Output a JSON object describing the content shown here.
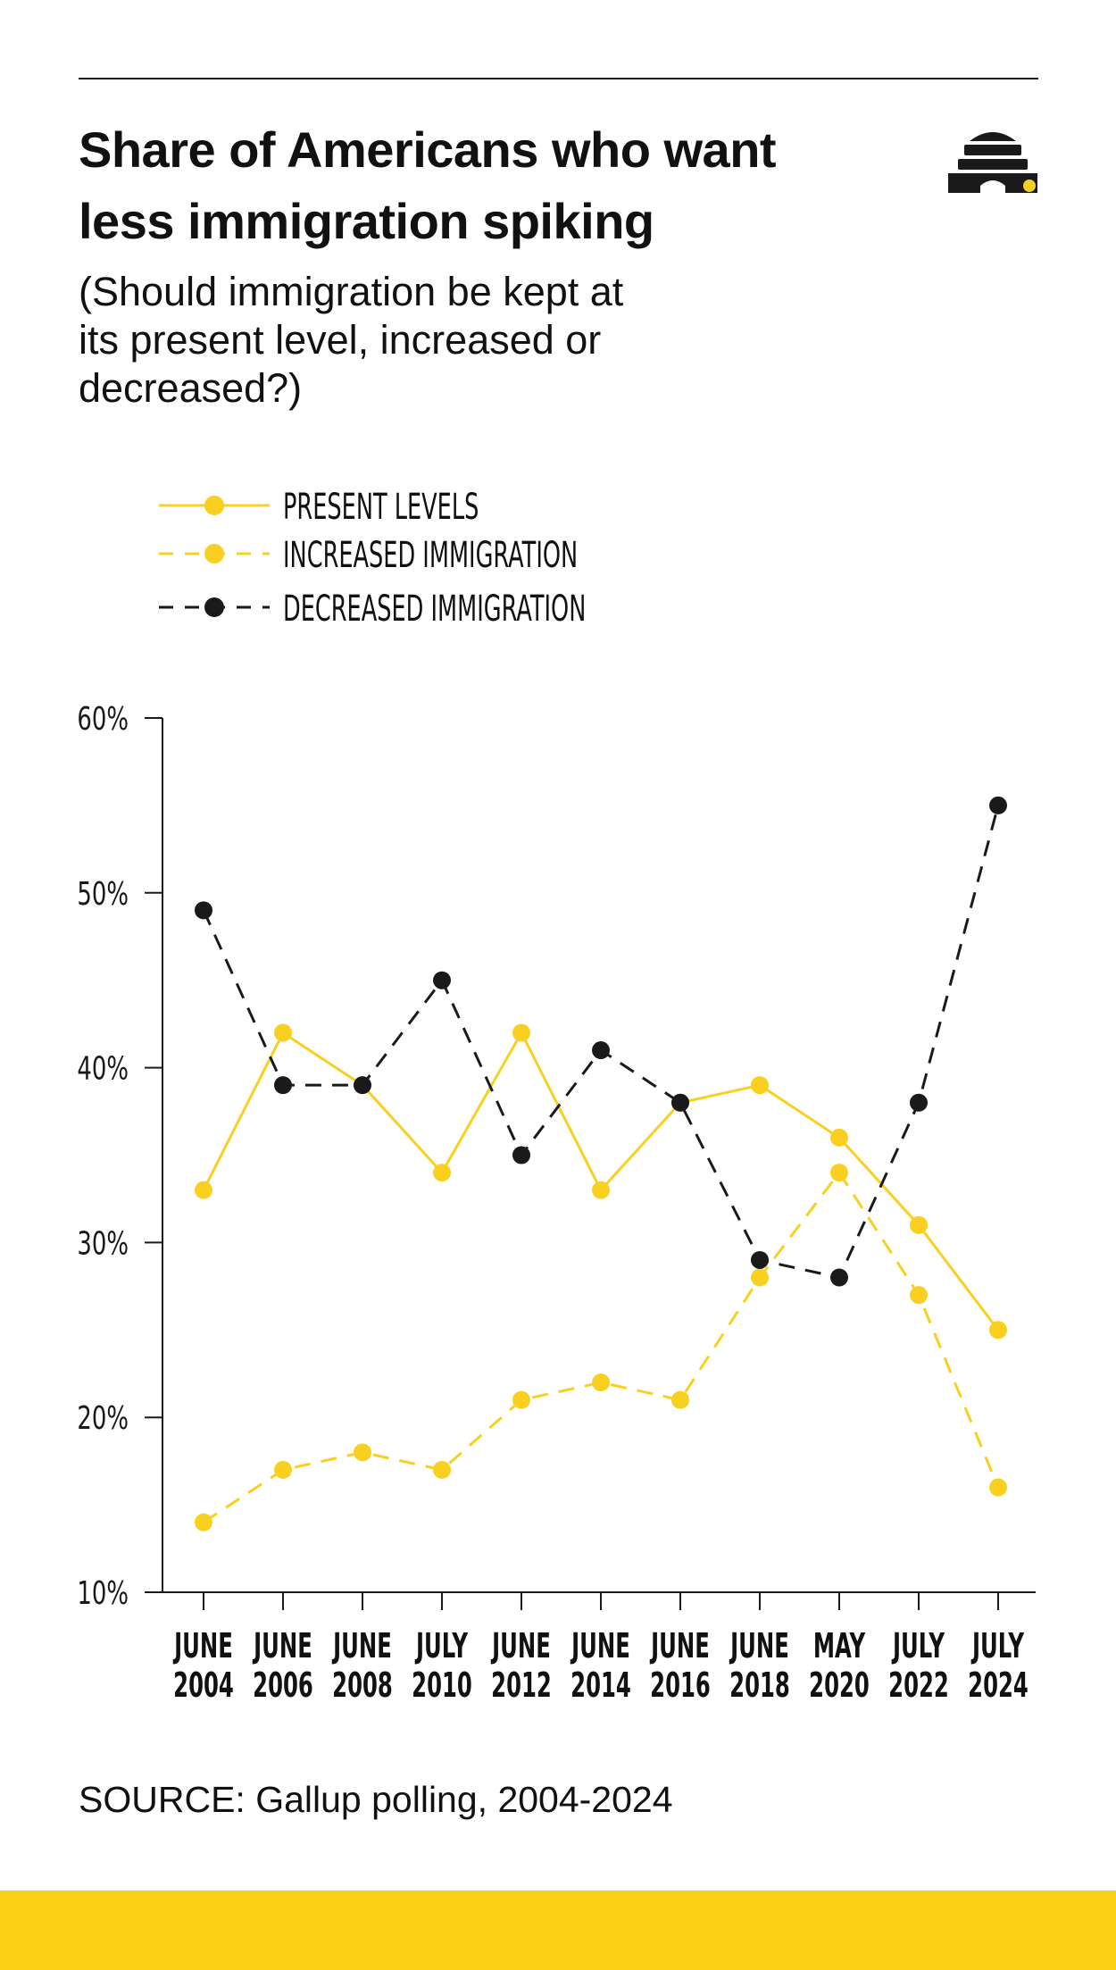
{
  "header": {
    "title_line1": "Share of Americans who want",
    "title_line2": "less immigration spiking",
    "subtitle_line1": "(Should immigration be kept at",
    "subtitle_line2": "its present level, increased or",
    "subtitle_line3": "decreased?)"
  },
  "logo": {
    "icon": "beehive-logo-icon"
  },
  "source": {
    "label": "SOURCE:",
    "text": "Gallup polling, 2004-2024"
  },
  "colors": {
    "yellow": "#f9d020",
    "black": "#1a1a1a",
    "band": "#fbd116",
    "axis": "#1a1a1a"
  },
  "chart_data": {
    "type": "line",
    "title": "Share of Americans who want less immigration spiking",
    "xlabel": "",
    "ylabel": "",
    "ylim": [
      10,
      60
    ],
    "yticks": [
      "10%",
      "20%",
      "30%",
      "40%",
      "50%",
      "60%"
    ],
    "ytick_values": [
      10,
      20,
      30,
      40,
      50,
      60
    ],
    "grid": false,
    "legend_position": "top-left",
    "categories": [
      [
        "JUNE",
        "2004"
      ],
      [
        "JUNE",
        "2006"
      ],
      [
        "JUNE",
        "2008"
      ],
      [
        "JULY",
        "2010"
      ],
      [
        "JUNE",
        "2012"
      ],
      [
        "JUNE",
        "2014"
      ],
      [
        "JUNE",
        "2016"
      ],
      [
        "JUNE",
        "2018"
      ],
      [
        "MAY",
        "2020"
      ],
      [
        "JULY",
        "2022"
      ],
      [
        "JULY",
        "2024"
      ]
    ],
    "series": [
      {
        "name": "PRESENT LEVELS",
        "style": "solid",
        "color": "#f9d020",
        "values": [
          33,
          42,
          39,
          34,
          42,
          33,
          38,
          39,
          36,
          31,
          25
        ]
      },
      {
        "name": "INCREASED IMMIGRATION",
        "style": "dashed",
        "color": "#f9d020",
        "values": [
          14,
          17,
          18,
          17,
          21,
          22,
          21,
          28,
          34,
          27,
          16
        ]
      },
      {
        "name": "DECREASED IMMIGRATION",
        "style": "dashed",
        "color": "#1a1a1a",
        "values": [
          49,
          39,
          39,
          45,
          35,
          41,
          38,
          29,
          28,
          38,
          55
        ]
      }
    ]
  }
}
